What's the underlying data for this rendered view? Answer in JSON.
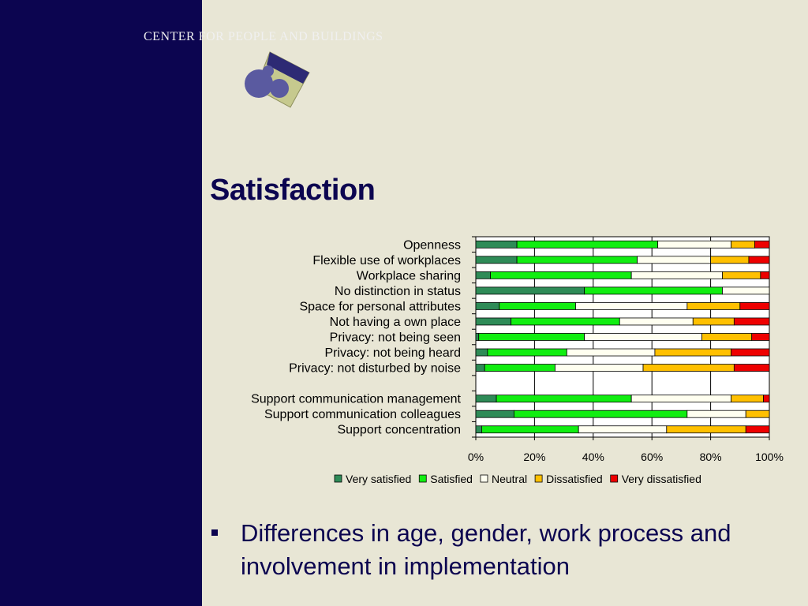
{
  "header": {
    "org_name": "CENTER FOR PEOPLE AND BUILDINGS"
  },
  "slide": {
    "title": "Satisfaction"
  },
  "bullets": [
    "Differences in age, gender, work process and involvement in implementation"
  ],
  "colors": {
    "sidebar": "#0c0550",
    "background": "#e8e6d5",
    "title": "#0c0550",
    "plot_area": "#ffffff"
  },
  "chart_data": {
    "type": "bar",
    "orientation": "horizontal",
    "stacked": "100%",
    "categories": [
      "Openness",
      "Flexible use of workplaces",
      "Workplace sharing",
      "No distinction in status",
      "Space for personal attributes",
      "Not having a own place",
      "Privacy: not being seen",
      "Privacy: not being heard",
      "Privacy: not disturbed by noise",
      "",
      "Support communication management",
      "Support communication colleagues",
      "Support concentration"
    ],
    "series": [
      {
        "name": "Very satisfied",
        "color": "#2e8b57",
        "values": [
          14,
          14,
          5,
          37,
          8,
          12,
          1,
          4,
          3,
          0,
          7,
          13,
          2
        ]
      },
      {
        "name": "Satisfied",
        "color": "#11ee11",
        "values": [
          48,
          41,
          48,
          47,
          26,
          37,
          36,
          27,
          24,
          0,
          46,
          59,
          33
        ]
      },
      {
        "name": "Neutral",
        "color": "#fffff0",
        "values": [
          25,
          25,
          31,
          16,
          38,
          25,
          40,
          30,
          30,
          0,
          34,
          20,
          30
        ]
      },
      {
        "name": "Dissatisfied",
        "color": "#ffc000",
        "values": [
          8,
          13,
          13,
          0,
          18,
          14,
          17,
          26,
          31,
          0,
          11,
          8,
          27
        ]
      },
      {
        "name": "Very dissatisfied",
        "color": "#ee0000",
        "values": [
          5,
          7,
          3,
          0,
          10,
          12,
          6,
          13,
          12,
          0,
          2,
          0,
          8
        ]
      }
    ],
    "x_tick_labels": [
      "0%",
      "20%",
      "40%",
      "60%",
      "80%",
      "100%"
    ],
    "xlim": [
      0,
      100
    ],
    "title": "",
    "xlabel": "",
    "ylabel": "",
    "grid": "vertical major",
    "legend": "bottom"
  }
}
